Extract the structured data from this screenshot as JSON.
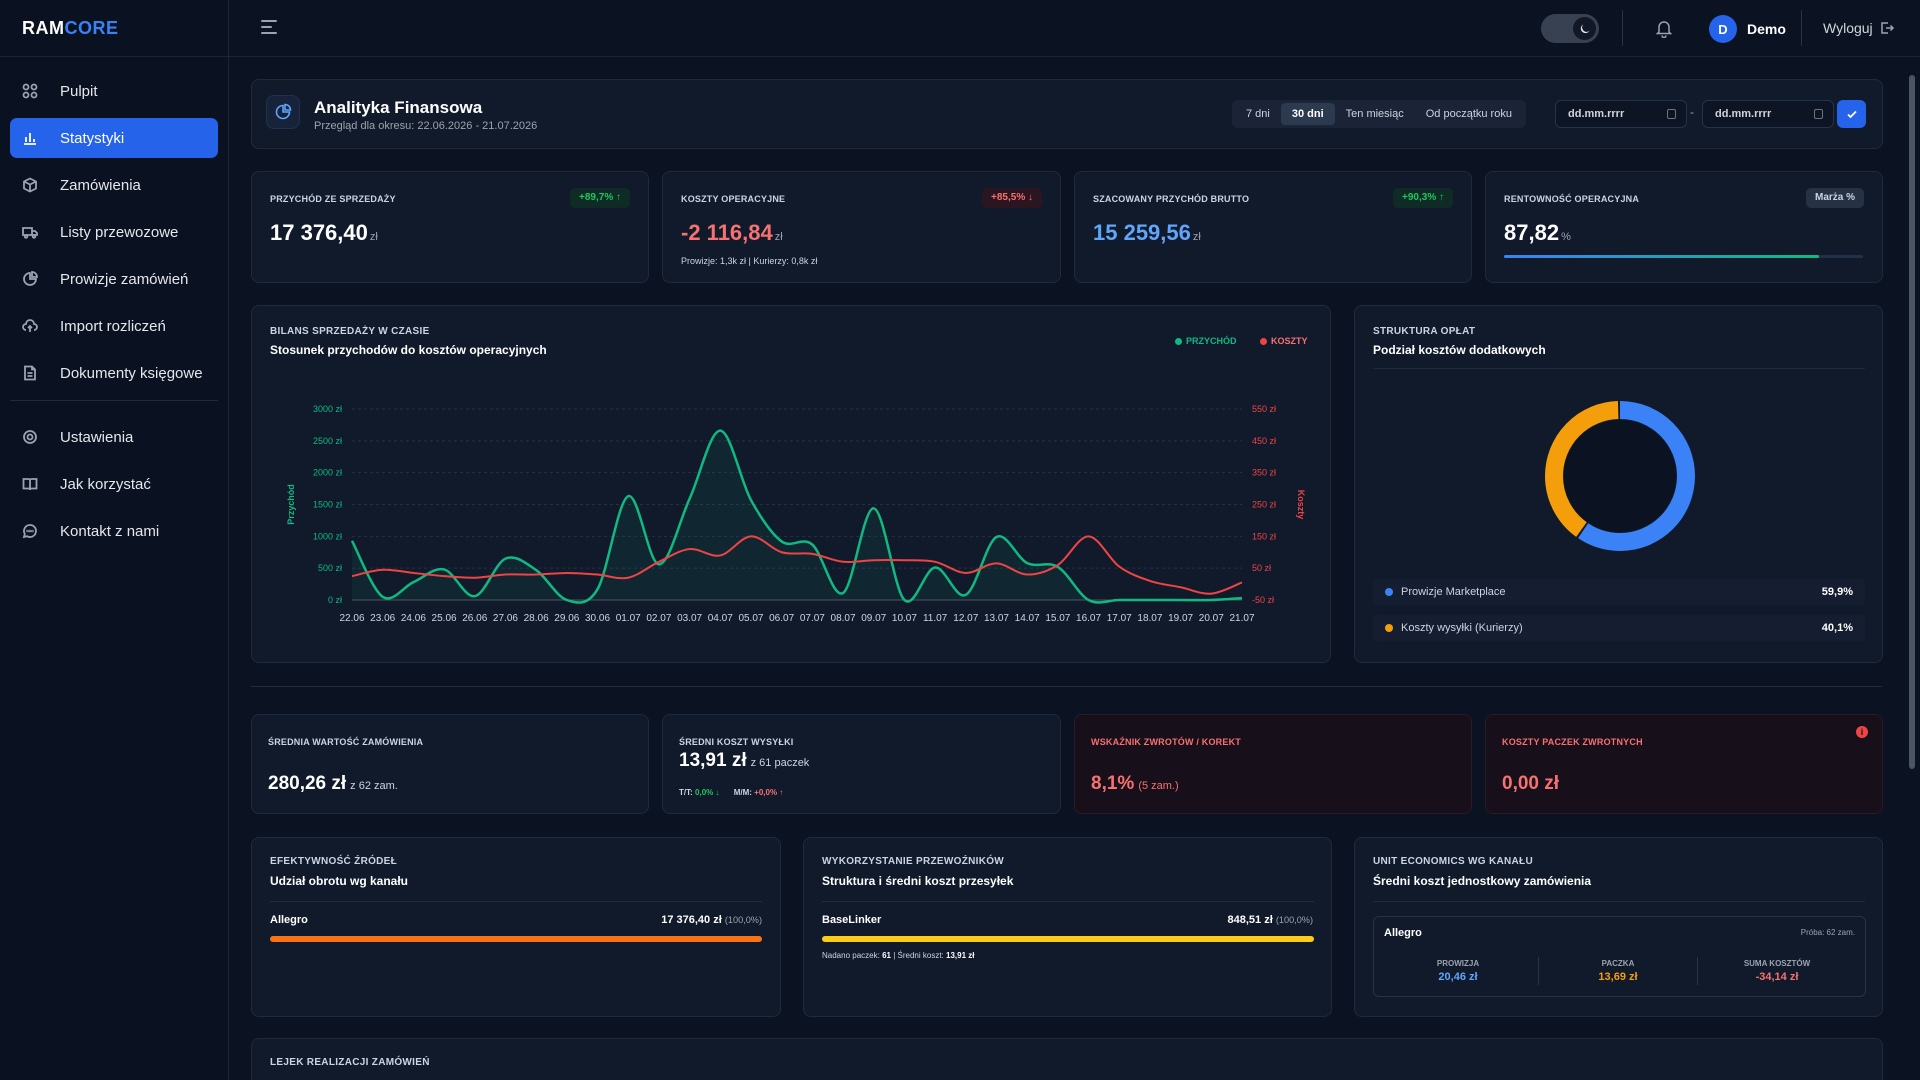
{
  "brand": {
    "part1": "RAM",
    "part2": "CORE"
  },
  "sidebar": {
    "items": [
      {
        "label": "Pulpit",
        "icon": "grid-icon"
      },
      {
        "label": "Statystyki",
        "icon": "bar-chart-icon",
        "active": true
      },
      {
        "label": "Zamówienia",
        "icon": "box-icon"
      },
      {
        "label": "Listy przewozowe",
        "icon": "truck-icon"
      },
      {
        "label": "Prowizje zamówień",
        "icon": "pie-icon"
      },
      {
        "label": "Import rozliczeń",
        "icon": "cloud-upload-icon"
      },
      {
        "label": "Dokumenty księgowe",
        "icon": "document-icon"
      }
    ],
    "bottom_items": [
      {
        "label": "Ustawienia",
        "icon": "gear-icon"
      },
      {
        "label": "Jak korzystać",
        "icon": "book-icon"
      },
      {
        "label": "Kontakt z nami",
        "icon": "chat-icon"
      }
    ]
  },
  "topbar": {
    "user_initial": "D",
    "user_name": "Demo",
    "logout_label": "Wyloguj",
    "theme": "dark"
  },
  "header": {
    "title": "Analityka Finansowa",
    "subtitle": "Przegląd dla okresu: 22.06.2026 - 21.07.2026",
    "periods": [
      "7 dni",
      "30 dni",
      "Ten miesiąc",
      "Od początku roku"
    ],
    "selected_period": "30 dni",
    "date_from_placeholder": "dd.mm.rrrr",
    "date_to_placeholder": "dd.mm.rrrr",
    "date_separator": "-"
  },
  "kpis": [
    {
      "label": "PRZYCHÓD ZE SPRZEDAŻY",
      "value": "17 376,40",
      "unit": "zł",
      "badge": "+89,7% ↑",
      "badge_color": "#22c55e"
    },
    {
      "label": "KOSZTY OPERACYJNE",
      "value": "-2 116,84",
      "unit": "zł",
      "badge": "+85,5% ↓",
      "badge_color": "#f87171",
      "note": "Prowizje: 1,3k zł | Kurierzy: 0,8k zł"
    },
    {
      "label": "SZACOWANY PRZYCHÓD BRUTTO",
      "value": "15 259,56",
      "unit": "zł",
      "badge": "+90,3% ↑",
      "badge_color": "#22c55e"
    },
    {
      "label": "RENTOWNOŚĆ OPERACYJNA",
      "value": "87,82",
      "unit": "%",
      "badge": "Marża %",
      "progress": 0.8782
    }
  ],
  "sales_chart": {
    "label": "BILANS SPRZEDAŻY W CZASIE",
    "title": "Stosunek przychodów do kosztów operacyjnych",
    "legend": [
      "PRZYCHÓD",
      "KOSZTY"
    ],
    "colors": {
      "revenue": "#10b981",
      "costs": "#ef4444"
    }
  },
  "chart_data": {
    "type": "line",
    "x": [
      "22.06",
      "23.06",
      "24.06",
      "25.06",
      "26.06",
      "27.06",
      "28.06",
      "29.06",
      "30.06",
      "01.07",
      "02.07",
      "03.07",
      "04.07",
      "05.07",
      "06.07",
      "07.07",
      "08.07",
      "09.07",
      "10.07",
      "11.07",
      "12.07",
      "13.07",
      "14.07",
      "15.07",
      "16.07",
      "17.07",
      "18.07",
      "19.07",
      "20.07",
      "21.07"
    ],
    "series": [
      {
        "name": "PRZYCHÓD",
        "axis": "left",
        "values": [
          930,
          50,
          280,
          480,
          60,
          650,
          470,
          0,
          170,
          1630,
          560,
          1590,
          2660,
          1570,
          920,
          870,
          110,
          1440,
          0,
          510,
          80,
          990,
          580,
          520,
          0,
          0,
          0,
          0,
          0,
          30
        ]
      },
      {
        "name": "KOSZTY",
        "axis": "right",
        "values": [
          25,
          45,
          35,
          25,
          20,
          30,
          30,
          35,
          30,
          20,
          70,
          110,
          90,
          150,
          100,
          95,
          70,
          75,
          75,
          70,
          35,
          65,
          30,
          60,
          150,
          55,
          10,
          -10,
          -30,
          5
        ]
      }
    ],
    "ylabel": "Przychód",
    "y2label": "Koszty",
    "ylim": [
      0,
      3000
    ],
    "y2lim": [
      -50,
      550
    ],
    "yticks": [
      "3000 zł",
      "2500 zł",
      "2000 zł",
      "1500 zł",
      "1000 zł",
      "500 zł",
      "0 zł"
    ],
    "y2ticks": [
      "550 zł",
      "450 zł",
      "350 zł",
      "250 zł",
      "150 zł",
      "50 zł",
      "-50 zł"
    ],
    "grid": true
  },
  "fee_structure": {
    "label": "STRUKTURA OPŁAT",
    "title": "Podział kosztów dodatkowych",
    "items": [
      {
        "label": "Prowizje Marketplace",
        "value": "59,9%",
        "fraction": 0.599,
        "color": "#3b82f6"
      },
      {
        "label": "Koszty wysyłki (Kurierzy)",
        "value": "40,1%",
        "fraction": 0.401,
        "color": "#f59e0b"
      }
    ]
  },
  "stats": [
    {
      "label": "ŚREDNIA WARTOŚĆ ZAMÓWIENIA",
      "value": "280,26 zł",
      "sub": "z 62 zam."
    },
    {
      "label": "ŚREDNI KOSZT WYSYŁKI",
      "value": "13,91 zł",
      "sub": "z 61 paczek",
      "tt_label": "T/T:",
      "tt_value": "0,0% ↓",
      "mm_label": "M/M:",
      "mm_value": "+0,0% ↑"
    },
    {
      "label": "WSKAŹNIK ZWROTÓW / KOREKT",
      "value": "8,1%",
      "sub": "(5 zam.)"
    },
    {
      "label": "KOSZTY PACZEK ZWROTNYCH",
      "value": "0,00 zł",
      "info_icon": "info-icon"
    }
  ],
  "source_efficiency": {
    "label": "EFEKTYWNOŚĆ ŹRÓDEŁ",
    "title": "Udział obrotu wg kanału",
    "rows": [
      {
        "name": "Allegro",
        "value": "17 376,40 zł",
        "share": "(100,0%)",
        "fraction": 1.0,
        "color": "#f97316"
      }
    ]
  },
  "carriers": {
    "label": "WYKORZYSTANIE PRZEWOŹNIKÓW",
    "title": "Struktura i średni koszt przesyłek",
    "rows": [
      {
        "name": "BaseLinker",
        "value": "848,51 zł",
        "share": "(100,0%)",
        "fraction": 1.0,
        "color": "#facc15"
      }
    ],
    "note_sent": "Nadano paczek:",
    "note_sent_value": "61",
    "note_sep": "|",
    "note_avg": "Średni koszt:",
    "note_avg_value": "13,91 zł"
  },
  "unit_economics": {
    "label": "UNIT ECONOMICS WG KANAŁU",
    "title": "Średni koszt jednostkowy zamówienia",
    "channel": "Allegro",
    "sample": "Próba: 62 zam.",
    "cols": [
      {
        "label": "PROWIZJA",
        "value": "20,46 zł",
        "color": "#60a5fa"
      },
      {
        "label": "PACZKA",
        "value": "13,69 zł",
        "color": "#f59e0b"
      },
      {
        "label": "SUMA KOSZTÓW",
        "value": "-34,14 zł",
        "color": "#f87171"
      }
    ]
  },
  "funnel": {
    "label": "LEJEK REALIZACJI ZAMÓWIEŃ"
  }
}
